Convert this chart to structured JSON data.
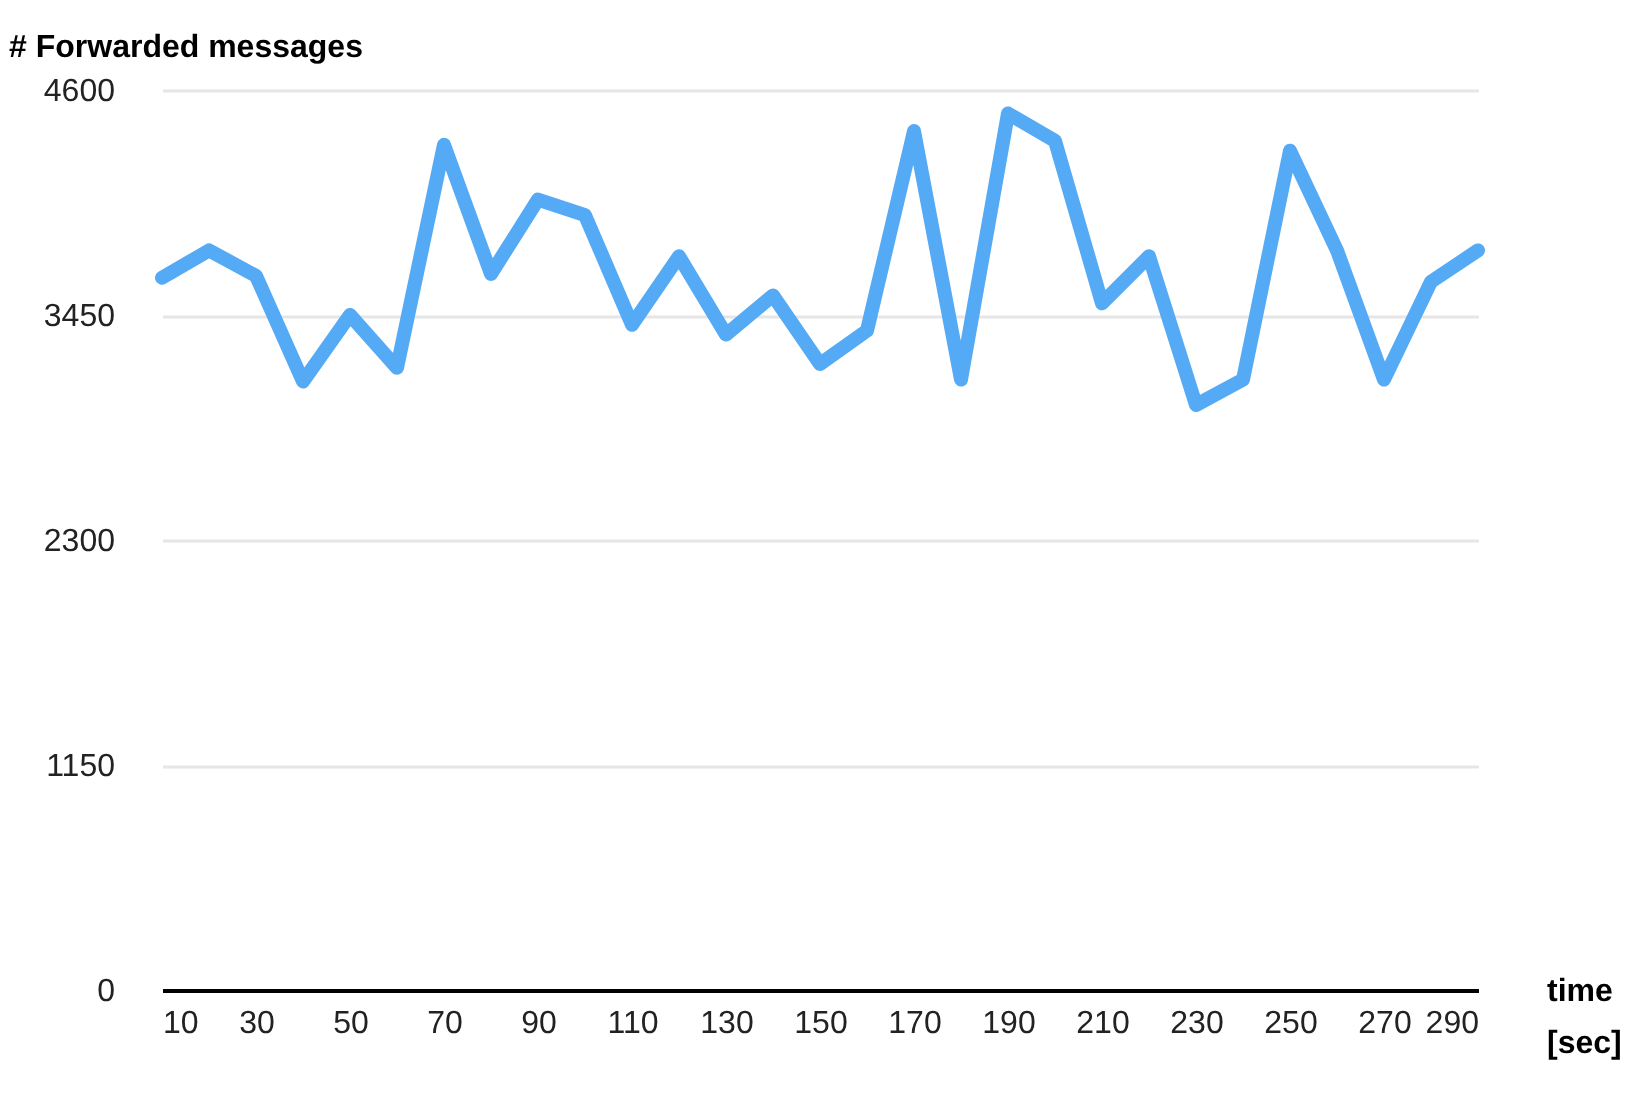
{
  "chart_data": {
    "type": "line",
    "ylabel": "# Forwarded messages",
    "xlabel": "time [sec]",
    "x": [
      10,
      20,
      30,
      40,
      50,
      60,
      70,
      80,
      90,
      100,
      110,
      120,
      130,
      140,
      150,
      160,
      170,
      180,
      190,
      200,
      210,
      220,
      230,
      240,
      250,
      260,
      270,
      280,
      290
    ],
    "series": [
      {
        "color": "#55aaf5",
        "values": [
          3640,
          3780,
          3650,
          3110,
          3450,
          3180,
          4320,
          3660,
          4040,
          3960,
          3400,
          3750,
          3350,
          3550,
          3200,
          3370,
          4390,
          3120,
          4480,
          4340,
          3510,
          3750,
          2990,
          3120,
          4290,
          3780,
          3120,
          3620,
          3780
        ]
      }
    ],
    "xlim": [
      10,
      290
    ],
    "xticks": [
      10,
      30,
      50,
      70,
      90,
      110,
      130,
      150,
      170,
      190,
      210,
      230,
      250,
      270,
      290
    ],
    "ylim": [
      0,
      4600
    ],
    "yticks": [
      0,
      1150,
      2300,
      3450,
      4600
    ],
    "grid": "y",
    "marker": "none",
    "line_style": "solid"
  }
}
